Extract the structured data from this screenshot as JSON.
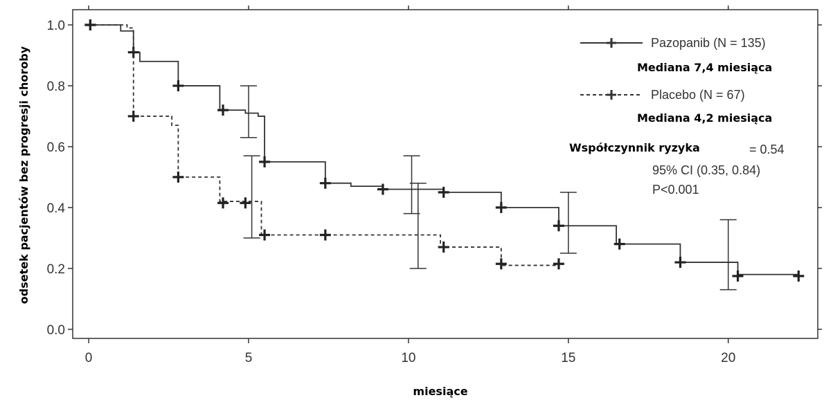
{
  "chart_data": {
    "type": "line",
    "subtype": "kaplan-meier",
    "xlabel": "miesiące",
    "ylabel": "odsetek pacjentów bez progresji choroby",
    "xlim": [
      -0.5,
      22.8
    ],
    "ylim": [
      -0.03,
      1.05
    ],
    "x_ticks": [
      0,
      5,
      10,
      15,
      20
    ],
    "x_tick_labels": [
      "0",
      "5",
      "10",
      "15",
      "20"
    ],
    "y_ticks": [
      0.0,
      0.2,
      0.4,
      0.6,
      0.8,
      1.0
    ],
    "y_tick_labels": [
      "0.0",
      "0.2",
      "0.4",
      "0.6",
      "0.8",
      "1.0"
    ],
    "grid": false,
    "legend_position": "top-right",
    "series": [
      {
        "name": "Pazopanib (N = 135)",
        "line_style": "solid",
        "color": "#333333",
        "steps": [
          [
            0,
            1.0
          ],
          [
            1.0,
            0.98
          ],
          [
            1.4,
            0.91
          ],
          [
            1.6,
            0.88
          ],
          [
            2.8,
            0.8
          ],
          [
            4.1,
            0.72
          ],
          [
            4.9,
            0.71
          ],
          [
            5.3,
            0.7
          ],
          [
            5.5,
            0.55
          ],
          [
            7.4,
            0.48
          ],
          [
            8.2,
            0.47
          ],
          [
            9.2,
            0.46
          ],
          [
            10.3,
            0.46
          ],
          [
            11.1,
            0.45
          ],
          [
            12.9,
            0.4
          ],
          [
            14.7,
            0.34
          ],
          [
            16.5,
            0.28
          ],
          [
            18.5,
            0.22
          ],
          [
            20.3,
            0.18
          ],
          [
            22.2,
            0.18
          ]
        ],
        "censor_marks": [
          [
            0.05,
            1.0
          ],
          [
            1.4,
            0.91
          ],
          [
            2.8,
            0.8
          ],
          [
            4.2,
            0.72
          ],
          [
            5.5,
            0.55
          ],
          [
            7.4,
            0.48
          ],
          [
            9.2,
            0.46
          ],
          [
            11.1,
            0.45
          ],
          [
            12.9,
            0.4
          ],
          [
            14.7,
            0.34
          ],
          [
            16.6,
            0.28
          ],
          [
            18.5,
            0.22
          ],
          [
            20.3,
            0.175
          ],
          [
            22.2,
            0.175
          ]
        ],
        "error_bars": [
          [
            5.0,
            0.63,
            0.8
          ],
          [
            10.1,
            0.38,
            0.57
          ],
          [
            15.0,
            0.25,
            0.45
          ],
          [
            20.0,
            0.13,
            0.36
          ]
        ]
      },
      {
        "name": "Placebo (N = 67)",
        "line_style": "dashed",
        "color": "#333333",
        "steps": [
          [
            0,
            1.0
          ],
          [
            1.2,
            0.99
          ],
          [
            1.4,
            0.7
          ],
          [
            2.6,
            0.67
          ],
          [
            2.8,
            0.5
          ],
          [
            4.1,
            0.42
          ],
          [
            5.4,
            0.31
          ],
          [
            11.0,
            0.27
          ],
          [
            12.9,
            0.21
          ],
          [
            14.7,
            0.21
          ]
        ],
        "censor_marks": [
          [
            0.05,
            1.0
          ],
          [
            1.4,
            0.7
          ],
          [
            2.8,
            0.5
          ],
          [
            4.2,
            0.415
          ],
          [
            4.9,
            0.415
          ],
          [
            5.5,
            0.31
          ],
          [
            7.4,
            0.31
          ],
          [
            11.1,
            0.27
          ],
          [
            12.9,
            0.215
          ],
          [
            14.7,
            0.215
          ]
        ],
        "error_bars": [
          [
            5.1,
            0.3,
            0.57
          ],
          [
            10.3,
            0.2,
            0.48
          ]
        ]
      }
    ],
    "annotations": {
      "pazopanib_median": "Mediana 7,4 miesiąca",
      "placebo_median": "Mediana 4,2 miesiąca",
      "hr_label": "Współczynnik ryzyka",
      "hr_value": "= 0.54",
      "ci": "95% CI (0.35, 0.84)",
      "p_value": "P<0.001"
    }
  }
}
